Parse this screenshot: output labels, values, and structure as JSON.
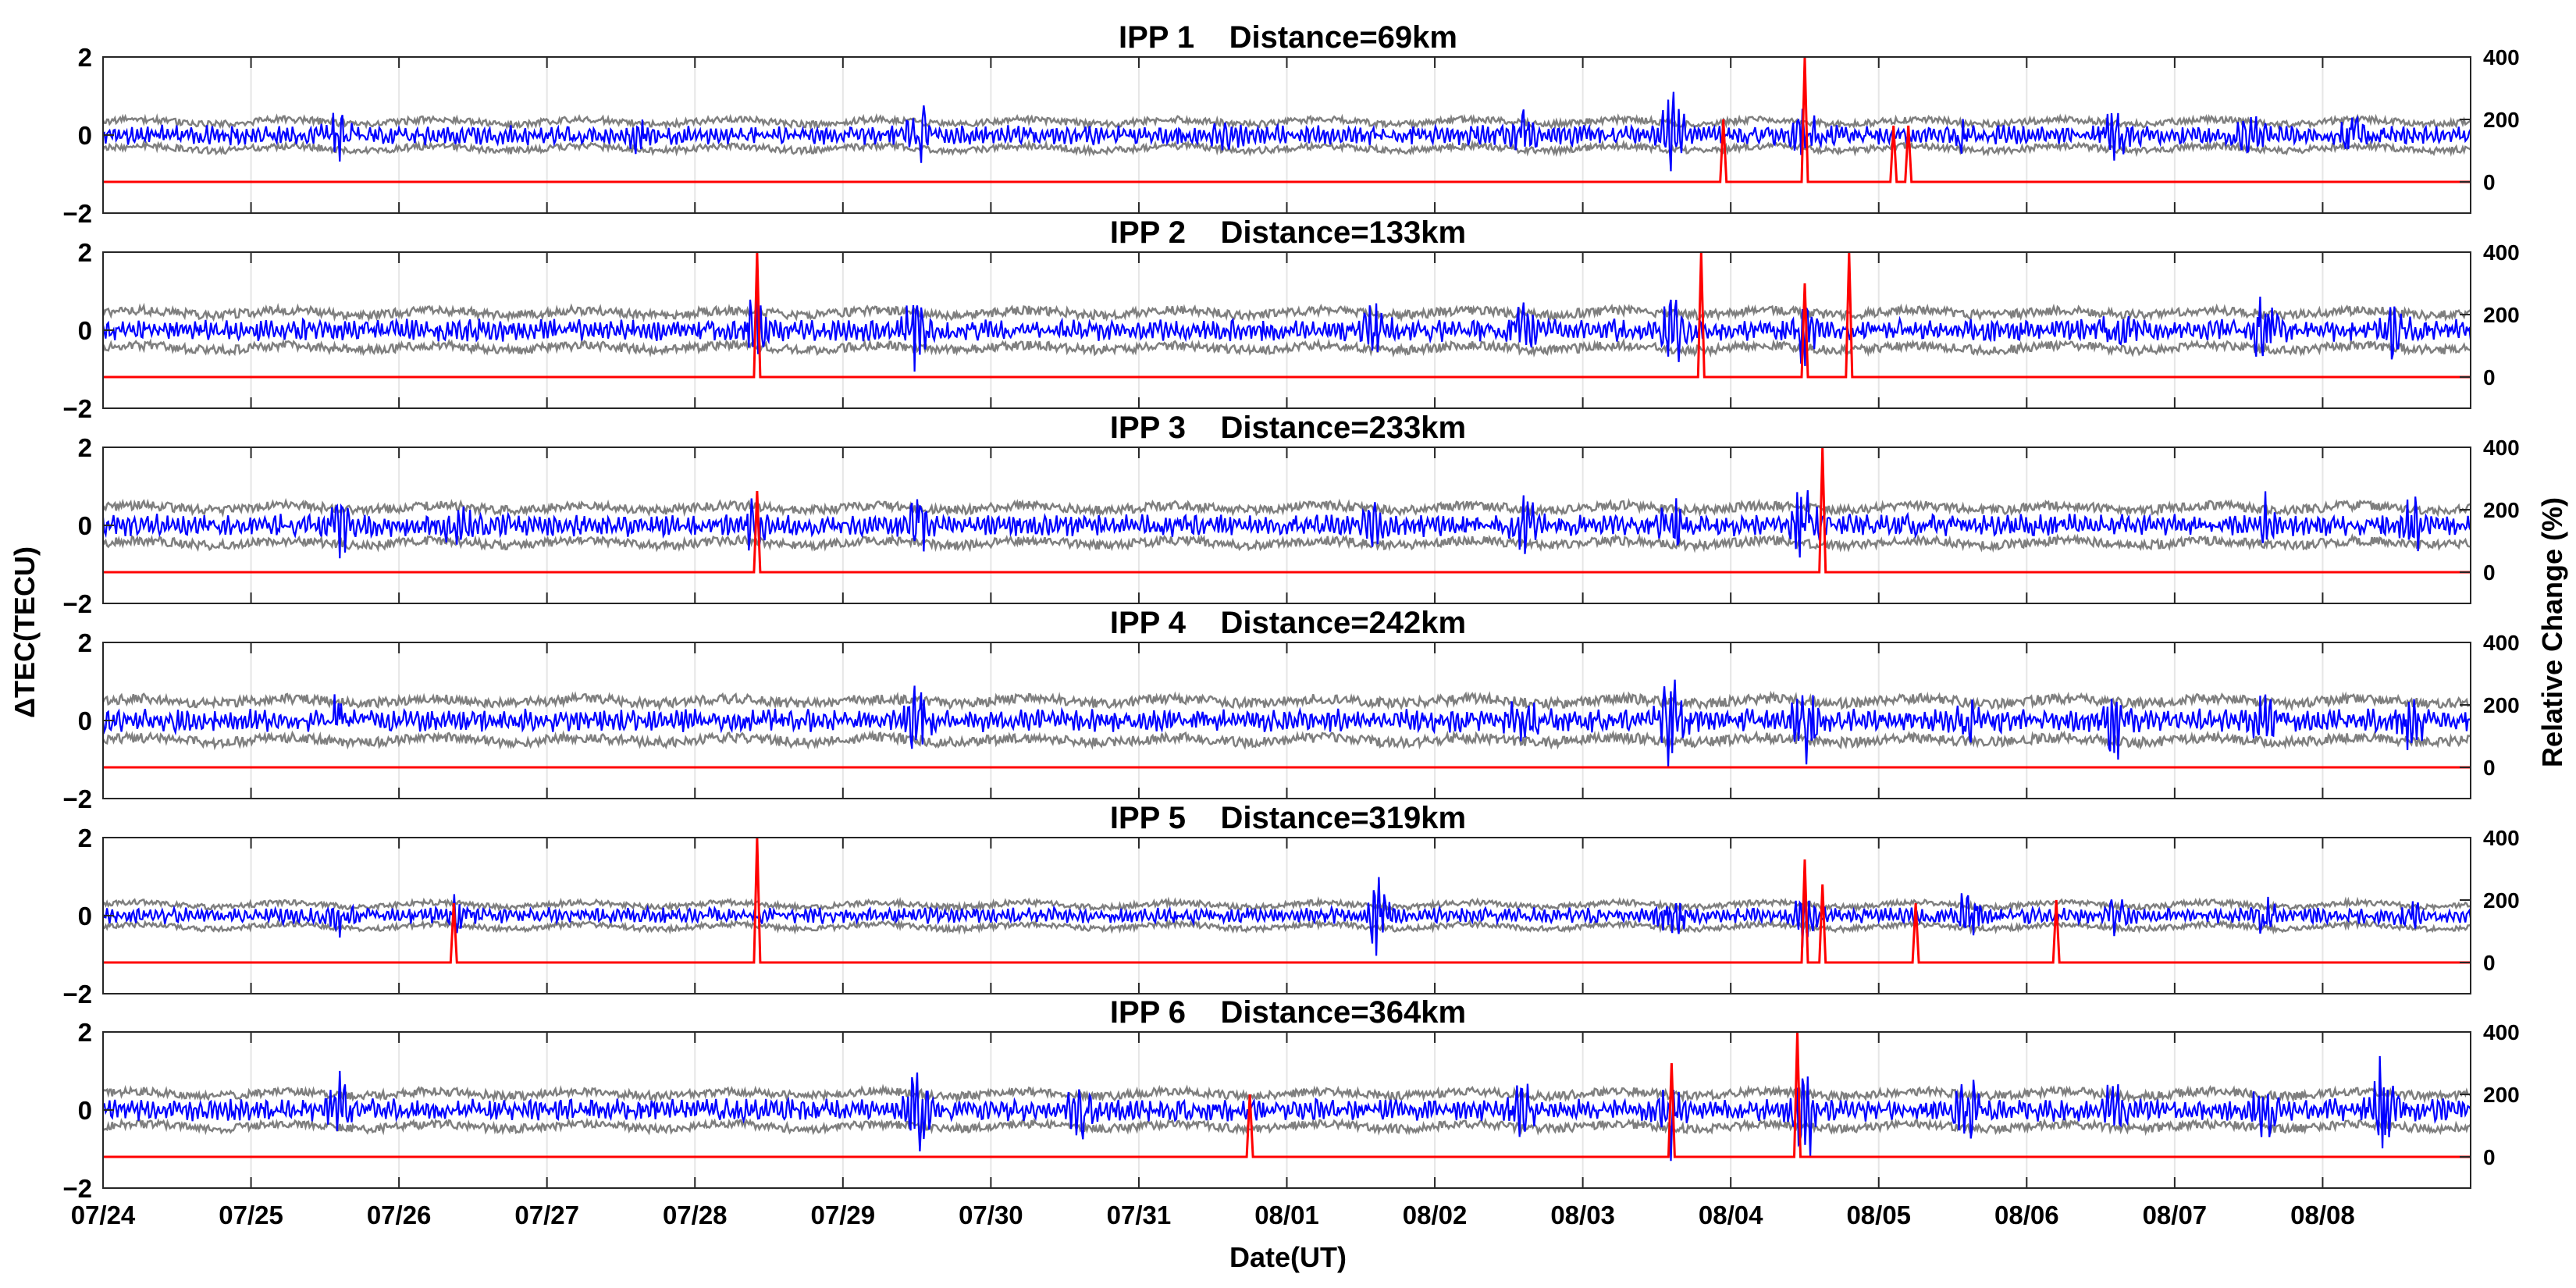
{
  "chart_data": {
    "type": "line",
    "xlabel": "Date(UT)",
    "ylabel_left": "ΔTEC(TECU)",
    "ylabel_right": "Relative Change (%)",
    "x_ticks": [
      "07/24",
      "07/25",
      "07/26",
      "07/27",
      "07/28",
      "07/29",
      "07/30",
      "07/31",
      "08/01",
      "08/02",
      "08/03",
      "08/04",
      "08/05",
      "08/06",
      "08/07",
      "08/08"
    ],
    "x_range_days": [
      0,
      16
    ],
    "left_ylim": [
      -2,
      2
    ],
    "left_ticks": [
      2,
      0,
      -2
    ],
    "left_tick_labels": [
      "2",
      "0",
      "−2"
    ],
    "right_ylim": [
      -100,
      400
    ],
    "right_ticks": [
      400,
      200,
      0
    ],
    "right_tick_labels": [
      "400",
      "200",
      "0"
    ],
    "series_colors": {
      "band": "#7f7f7f",
      "dtec": "#0000ff",
      "relative_change": "#ff0000"
    },
    "panels": [
      {
        "title": "IPP 1    Distance=69km",
        "band_amplitude": 0.34,
        "dtec_amplitude": 0.22,
        "bursts": [
          {
            "day": 1.6,
            "amp": 0.9
          },
          {
            "day": 3.6,
            "amp": 0.7
          },
          {
            "day": 5.5,
            "amp": 1.2
          },
          {
            "day": 7.6,
            "amp": 0.5
          },
          {
            "day": 9.6,
            "amp": 0.9
          },
          {
            "day": 10.6,
            "amp": 1.8
          },
          {
            "day": 11.5,
            "amp": 1.0
          },
          {
            "day": 12.6,
            "amp": 0.6
          },
          {
            "day": 13.6,
            "amp": 0.9
          },
          {
            "day": 14.5,
            "amp": 0.8
          },
          {
            "day": 15.2,
            "amp": 0.8
          }
        ],
        "relative_change_spikes": [
          {
            "day": 10.95,
            "value": 200
          },
          {
            "day": 11.5,
            "value": 400
          },
          {
            "day": 12.1,
            "value": 180
          },
          {
            "day": 12.2,
            "value": 180
          }
        ]
      },
      {
        "title": "IPP 2    Distance=133km",
        "band_amplitude": 0.45,
        "dtec_amplitude": 0.25,
        "bursts": [
          {
            "day": 4.4,
            "amp": 1.2
          },
          {
            "day": 5.5,
            "amp": 1.6
          },
          {
            "day": 8.6,
            "amp": 1.0
          },
          {
            "day": 9.6,
            "amp": 0.8
          },
          {
            "day": 10.6,
            "amp": 1.4
          },
          {
            "day": 11.5,
            "amp": 1.3
          },
          {
            "day": 13.6,
            "amp": 0.8
          },
          {
            "day": 14.6,
            "amp": 1.2
          },
          {
            "day": 15.5,
            "amp": 1.0
          }
        ],
        "relative_change_spikes": [
          {
            "day": 4.42,
            "value": 400
          },
          {
            "day": 10.8,
            "value": 400
          },
          {
            "day": 11.5,
            "value": 300
          },
          {
            "day": 11.8,
            "value": 400
          }
        ]
      },
      {
        "title": "IPP 3    Distance=233km",
        "band_amplitude": 0.45,
        "dtec_amplitude": 0.25,
        "bursts": [
          {
            "day": 1.6,
            "amp": 0.9
          },
          {
            "day": 2.4,
            "amp": 0.8
          },
          {
            "day": 4.4,
            "amp": 0.8
          },
          {
            "day": 5.5,
            "amp": 1.4
          },
          {
            "day": 8.6,
            "amp": 0.8
          },
          {
            "day": 9.6,
            "amp": 1.0
          },
          {
            "day": 10.6,
            "amp": 1.1
          },
          {
            "day": 11.5,
            "amp": 1.6
          },
          {
            "day": 14.6,
            "amp": 1.2
          },
          {
            "day": 15.6,
            "amp": 0.9
          }
        ],
        "relative_change_spikes": [
          {
            "day": 4.42,
            "value": 260
          },
          {
            "day": 11.62,
            "value": 400
          }
        ]
      },
      {
        "title": "IPP 4    Distance=242km",
        "band_amplitude": 0.5,
        "dtec_amplitude": 0.26,
        "bursts": [
          {
            "day": 1.6,
            "amp": 0.8
          },
          {
            "day": 5.5,
            "amp": 1.2
          },
          {
            "day": 9.6,
            "amp": 1.1
          },
          {
            "day": 10.6,
            "amp": 1.9
          },
          {
            "day": 11.5,
            "amp": 1.9
          },
          {
            "day": 12.6,
            "amp": 0.9
          },
          {
            "day": 13.6,
            "amp": 1.2
          },
          {
            "day": 14.6,
            "amp": 1.0
          },
          {
            "day": 15.6,
            "amp": 1.0
          }
        ],
        "relative_change_spikes": []
      },
      {
        "title": "IPP 5    Distance=319km",
        "band_amplitude": 0.28,
        "dtec_amplitude": 0.18,
        "bursts": [
          {
            "day": 1.6,
            "amp": 0.6
          },
          {
            "day": 2.4,
            "amp": 0.6
          },
          {
            "day": 8.6,
            "amp": 1.4
          },
          {
            "day": 10.6,
            "amp": 0.9
          },
          {
            "day": 11.5,
            "amp": 1.2
          },
          {
            "day": 12.6,
            "amp": 0.8
          },
          {
            "day": 13.6,
            "amp": 0.7
          },
          {
            "day": 14.6,
            "amp": 0.7
          },
          {
            "day": 15.6,
            "amp": 0.6
          }
        ],
        "relative_change_spikes": [
          {
            "day": 2.37,
            "value": 190
          },
          {
            "day": 4.42,
            "value": 400
          },
          {
            "day": 11.5,
            "value": 330
          },
          {
            "day": 11.62,
            "value": 250
          },
          {
            "day": 12.25,
            "value": 190
          },
          {
            "day": 13.2,
            "value": 200
          }
        ]
      },
      {
        "title": "IPP 6    Distance=364km",
        "band_amplitude": 0.42,
        "dtec_amplitude": 0.25,
        "bursts": [
          {
            "day": 1.6,
            "amp": 1.1
          },
          {
            "day": 5.5,
            "amp": 1.4
          },
          {
            "day": 6.6,
            "amp": 0.8
          },
          {
            "day": 9.6,
            "amp": 0.8
          },
          {
            "day": 10.6,
            "amp": 1.8
          },
          {
            "day": 11.5,
            "amp": 2.0
          },
          {
            "day": 12.6,
            "amp": 1.4
          },
          {
            "day": 13.6,
            "amp": 1.0
          },
          {
            "day": 14.6,
            "amp": 1.0
          },
          {
            "day": 15.4,
            "amp": 2.0
          }
        ],
        "relative_change_spikes": [
          {
            "day": 7.75,
            "value": 200
          },
          {
            "day": 10.6,
            "value": 300
          },
          {
            "day": 11.45,
            "value": 400
          }
        ]
      }
    ]
  }
}
